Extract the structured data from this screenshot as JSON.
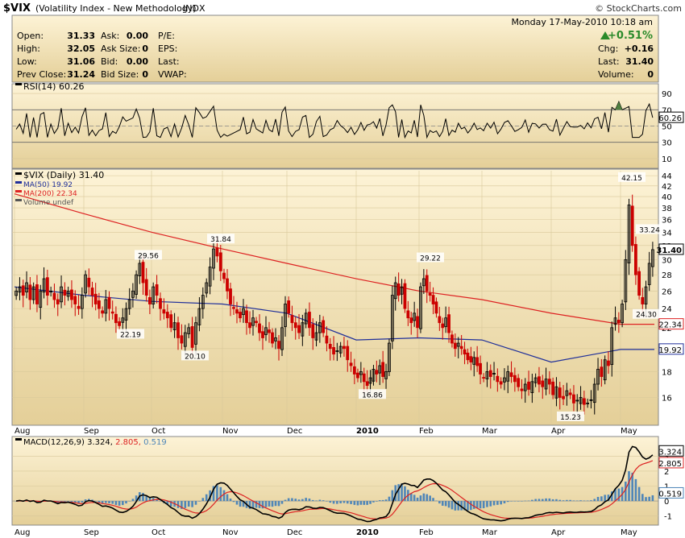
{
  "header": {
    "symbol": "$VIX",
    "name": "(Volatility Index - New Methodology)",
    "exchange": "INDX",
    "watermark": "© StockCharts.com",
    "datetime": "Monday  17-May-2010  10:18 am",
    "change_pct": "+0.51%",
    "quote_left": [
      {
        "label": "Open:",
        "value": "31.33"
      },
      {
        "label": "High:",
        "value": "32.05"
      },
      {
        "label": "Low:",
        "value": "31.06"
      },
      {
        "label": "Prev Close:",
        "value": "31.24"
      }
    ],
    "quote_mid": [
      {
        "label": "Ask:",
        "value": "0.00"
      },
      {
        "label": "Ask Size:",
        "value": "0"
      },
      {
        "label": "Bid:",
        "value": "0.00"
      },
      {
        "label": "Bid Size:",
        "value": "0"
      }
    ],
    "quote_mid2": [
      "P/E:",
      "EPS:",
      "Last:",
      "VWAP:"
    ],
    "quote_right": [
      {
        "label": "Chg:",
        "value": "+0.16"
      },
      {
        "label": "Last:",
        "value": "31.40"
      },
      {
        "label": "Volume:",
        "value": "0"
      }
    ]
  },
  "colors": {
    "panel_bg_top": "#fdf3d6",
    "panel_bg_bottom": "#e4cf98",
    "up": "#000000",
    "down": "#cc0000",
    "ma50": "#1f2f9a",
    "ma200": "#dd2222",
    "macd_hist": "#4f86b8",
    "macd_line": "#000000",
    "macd_signal": "#dd2222",
    "rsi_line": "#000000",
    "rsi_fill": "#4f7f3f"
  },
  "chart_data": {
    "type": "candlestick",
    "x_labels": [
      "Aug",
      "Sep",
      "Oct",
      "Nov",
      "Dec",
      "2010",
      "Feb",
      "Mar",
      "Apr",
      "May"
    ],
    "price_panel": {
      "legend": [
        "$VIX (Daily) 31.40",
        "MA(50) 19.92",
        "MA(200) 22.34",
        "Volume undef"
      ],
      "log_scale": true,
      "y_ticks": [
        16,
        18,
        20,
        22,
        24,
        26,
        28,
        30,
        32,
        34,
        36,
        38,
        40,
        42,
        44
      ],
      "last_price_label": "31.40",
      "ma50_label": "19.92",
      "ma200_label": "22.34",
      "annotations": [
        {
          "text": "29.56",
          "month": "Oct",
          "value": 29.56
        },
        {
          "text": "31.84",
          "month": "Nov",
          "value": 31.84
        },
        {
          "text": "22.19",
          "month": "Sep",
          "value": 22.19
        },
        {
          "text": "20.10",
          "month": "Oct",
          "value": 20.1
        },
        {
          "text": "16.86",
          "month": "2010",
          "value": 16.86
        },
        {
          "text": "29.22",
          "month": "Feb",
          "value": 29.22
        },
        {
          "text": "15.23",
          "month": "Apr",
          "value": 15.23
        },
        {
          "text": "42.15",
          "month": "May",
          "value": 42.15
        },
        {
          "text": "33.24",
          "month": "May",
          "value": 33.24
        },
        {
          "text": "24.30",
          "month": "May",
          "value": 24.3
        }
      ],
      "close_by_month": {
        "Aug": [
          26.0,
          26.5,
          25.5,
          27.0,
          25.0,
          26.5,
          24.5,
          26.0,
          27.5,
          25.5,
          26.0,
          25.0,
          24.5,
          26.5,
          25.5,
          26.0,
          25.0,
          24.5,
          24.0,
          25.5
        ],
        "Sep": [
          28.0,
          26.5,
          25.5,
          24.5,
          24.0,
          23.5,
          25.0,
          24.0,
          23.5,
          22.5,
          22.2,
          23.0,
          24.0,
          25.0,
          26.0,
          28.0,
          29.5,
          27.0,
          25.5,
          24.5
        ],
        "Oct": [
          26.5,
          25.5,
          24.0,
          23.5,
          23.0,
          22.0,
          22.5,
          21.0,
          20.5,
          21.5,
          22.0,
          20.1,
          22.5,
          24.0,
          25.5,
          27.0,
          29.0,
          31.5,
          30.5,
          28.5
        ],
        "Nov": [
          27.5,
          26.0,
          24.5,
          24.0,
          23.5,
          23.0,
          24.0,
          22.5,
          22.0,
          23.0,
          22.5,
          21.5,
          21.0,
          22.0,
          21.5,
          20.5,
          21.0,
          20.0,
          22.0,
          24.5
        ],
        "Dec": [
          23.5,
          22.5,
          22.0,
          21.5,
          22.5,
          23.5,
          22.0,
          21.0,
          21.5,
          22.5,
          21.5,
          20.5,
          20.0,
          19.5,
          19.8,
          20.2,
          20.0,
          19.0,
          18.5,
          17.8
        ],
        "2010": [
          17.5,
          18.0,
          17.2,
          16.9,
          17.5,
          18.2,
          17.8,
          18.5,
          17.6,
          18.0,
          20.5,
          25.5,
          27.0,
          25.5,
          26.5,
          24.0,
          23.0,
          22.5,
          23.5,
          22.0
        ],
        "Feb": [
          26.5,
          27.5,
          26.0,
          25.5,
          24.5,
          23.5,
          22.5,
          22.0,
          23.0,
          21.5,
          20.5,
          20.0,
          20.5,
          20.0,
          19.5,
          19.0,
          18.8,
          19.2,
          18.5,
          17.8
        ],
        "Mar": [
          17.5,
          18.0,
          17.6,
          17.8,
          17.2,
          17.0,
          17.5,
          18.0,
          17.6,
          17.2,
          16.8,
          16.5,
          17.0,
          16.6,
          17.2,
          17.5,
          17.0,
          16.8,
          17.4,
          17.0
        ],
        "Apr": [
          16.2,
          16.8,
          16.0,
          15.9,
          16.5,
          16.2,
          15.6,
          15.8,
          16.0,
          15.5,
          15.6,
          15.8,
          17.0,
          18.2,
          17.6,
          19.0,
          18.5,
          22.0,
          23.0,
          22.5
        ],
        "May": [
          24.5,
          30.0,
          38.5,
          32.0,
          28.0,
          25.5,
          24.5,
          26.5,
          29.5,
          31.4
        ]
      },
      "ma50_by_month": {
        "Aug": 26.5,
        "Sep": 25.5,
        "Oct": 24.8,
        "Nov": 24.5,
        "Dec": 23.5,
        "2010": 20.8,
        "Feb": 21.0,
        "Mar": 20.8,
        "Apr": 18.8,
        "May": 19.92
      },
      "ma200_by_month": {
        "Aug": 40.5,
        "Sep": 37.0,
        "Oct": 34.0,
        "Nov": 31.5,
        "Dec": 29.5,
        "2010": 27.5,
        "Feb": 26.0,
        "Mar": 25.0,
        "Apr": 23.5,
        "May": 22.34
      }
    },
    "rsi_panel": {
      "legend": "RSI(14) 60.26",
      "y_ticks": [
        10,
        30,
        50,
        70,
        90
      ],
      "value_label": "60.26"
    },
    "macd_panel": {
      "legend_prefix": "MACD(12,26,9)",
      "legend_macd": "3.324",
      "legend_signal": "2.805",
      "legend_hist": "0.519",
      "y_ticks": [
        -1,
        0,
        1,
        2,
        3
      ],
      "macd_label": "3.324",
      "signal_label": "2.805",
      "hist_label": "0.519"
    }
  }
}
